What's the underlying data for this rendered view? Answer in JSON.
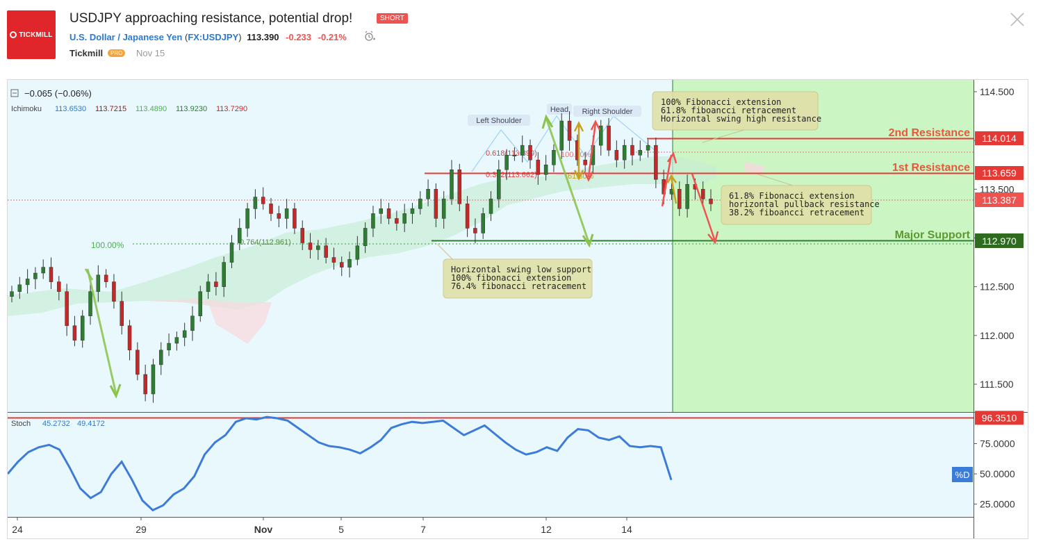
{
  "header": {
    "logo_text": "TICKMILL",
    "title": "USDJPY approaching resistance, potential drop!",
    "tag": "SHORT",
    "symbol_name": "U.S. Dollar / Japanese Yen",
    "ticker": "FX:USDJPY",
    "price": "113.390",
    "change": "-0.233",
    "change_pct": "-0.21%",
    "author": "Tickmill",
    "badge": "PRO",
    "date": "Nov 15"
  },
  "legend": {
    "main_change": "−0.065 (−0.06%)",
    "ichimoku_label": "Ichimoku",
    "ichimoku_values": [
      "113.6530",
      "113.7215",
      "113.4890",
      "113.9230",
      "113.7290"
    ],
    "stoch_label": "Stoch",
    "stoch_values": [
      "45.2732",
      "49.4172"
    ]
  },
  "colors": {
    "resistance": "#e53935",
    "support": "#2e7d32",
    "price_tag": "#ef5350",
    "forecast_bg": "#ccf5c4",
    "chart_bg": "#e9f8fd",
    "stoch_line": "#3d7bd9",
    "up_candle": "#2e7d32",
    "down_candle": "#c62828"
  },
  "chart_data": [
    {
      "type": "candlestick",
      "title": "USDJPY",
      "x_ticks": [
        "24",
        "29",
        "Nov",
        "5",
        "7",
        "12",
        "14"
      ],
      "ylim": [
        111.2,
        114.65
      ],
      "y_ticks": [
        "114.500",
        "114.000",
        "113.500",
        "113.000",
        "112.500",
        "112.000",
        "111.500"
      ],
      "last_price": "113.387",
      "levels": [
        {
          "name": "2nd Resistance",
          "label": "2nd Resistance",
          "value": 114.014,
          "value_label": "114.014"
        },
        {
          "name": "1st Resistance",
          "label": "1st Resistance",
          "value": 113.659,
          "value_label": "113.659"
        },
        {
          "name": "Major Support",
          "label": "Major Support",
          "value": 112.97,
          "value_label": "112.970"
        }
      ],
      "fib_labels": [
        "100.00%",
        "0.764(112.961)",
        "0.618(113.890)",
        "0.382(113.662)",
        "100.00%",
        "61.80%"
      ],
      "pattern_labels": [
        "Left Shoulder",
        "Head",
        "Right Shoulder"
      ],
      "annotations": [
        [
          "100% Fibonacci extension",
          "61.8% fiboancci retracement",
          "Horizontal swing high resistance"
        ],
        [
          "61.8% Fibonacci extension",
          "horizontal pullback resistance",
          "38.2% fiboancci retracement"
        ],
        [
          "Horizontal swing low support",
          "100% fibonacci extension",
          "76.4% fibonacci retracement"
        ]
      ],
      "close_series": [
        112.45,
        112.52,
        112.58,
        112.64,
        112.7,
        112.55,
        112.45,
        112.1,
        111.95,
        112.2,
        112.45,
        112.62,
        112.55,
        112.35,
        112.1,
        111.85,
        111.6,
        111.4,
        111.7,
        111.85,
        111.92,
        111.98,
        112.05,
        112.2,
        112.45,
        112.55,
        112.5,
        112.75,
        112.95,
        113.1,
        113.3,
        113.42,
        113.35,
        113.25,
        113.2,
        113.3,
        113.1,
        112.95,
        112.88,
        112.92,
        112.8,
        112.75,
        112.7,
        112.78,
        112.92,
        113.1,
        113.25,
        113.3,
        113.2,
        113.15,
        113.25,
        113.3,
        113.4,
        113.5,
        113.2,
        113.4,
        113.7,
        113.35,
        113.1,
        113.05,
        113.25,
        113.4,
        113.7,
        113.85,
        113.85,
        113.95,
        113.8,
        113.65,
        113.75,
        113.9,
        114.2,
        114.0,
        113.8,
        113.75,
        113.95,
        114.15,
        113.9,
        113.8,
        113.95,
        113.85,
        113.9,
        113.95,
        113.6,
        113.45,
        113.5,
        113.3,
        113.55,
        113.5,
        113.4,
        113.35
      ],
      "stoch_ylim": [
        15,
        100
      ],
      "stoch_ticks": [
        "96.3510",
        "75.0000",
        "50.0000",
        "25.0000"
      ],
      "stoch_series": [
        50,
        60,
        68,
        72,
        74,
        70,
        55,
        38,
        30,
        35,
        50,
        60,
        45,
        28,
        20,
        24,
        33,
        38,
        48,
        66,
        76,
        82,
        93,
        96,
        95,
        97,
        96,
        94,
        88,
        82,
        76,
        73,
        72,
        70,
        67,
        72,
        78,
        88,
        91,
        93,
        92,
        93,
        94,
        88,
        82,
        86,
        90,
        83,
        76,
        70,
        66,
        68,
        72,
        69,
        80,
        87,
        86,
        80,
        78,
        81,
        73,
        72,
        73,
        72,
        45
      ],
      "stoch_line_label": "%D"
    }
  ]
}
